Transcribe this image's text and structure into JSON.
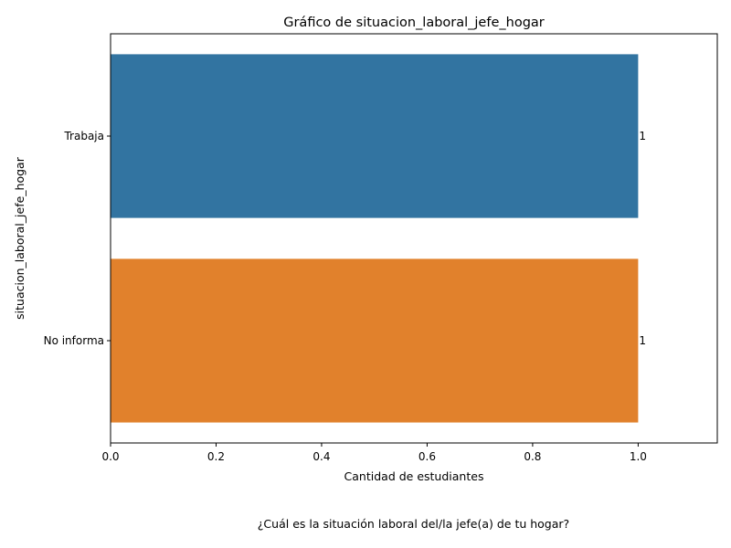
{
  "chart_data": {
    "type": "bar",
    "orientation": "horizontal",
    "title": "Gráfico de situacion_laboral_jefe_hogar",
    "xlabel": "Cantidad de estudiantes",
    "ylabel": "situacion_laboral_jefe_hogar",
    "categories": [
      "Trabaja",
      "No informa"
    ],
    "values": [
      1,
      1
    ],
    "data_labels": [
      "1",
      "1"
    ],
    "colors": [
      "#3274a1",
      "#e1812c"
    ],
    "xlim": [
      0,
      1.15
    ],
    "xticks": [
      "0.0",
      "0.2",
      "0.4",
      "0.6",
      "0.8",
      "1.0"
    ],
    "xtick_values": [
      0,
      0.2,
      0.4,
      0.6,
      0.8,
      1.0
    ],
    "grid": false,
    "legend": "none"
  },
  "caption": "¿Cuál es la situación laboral del/la jefe(a) de tu hogar?"
}
